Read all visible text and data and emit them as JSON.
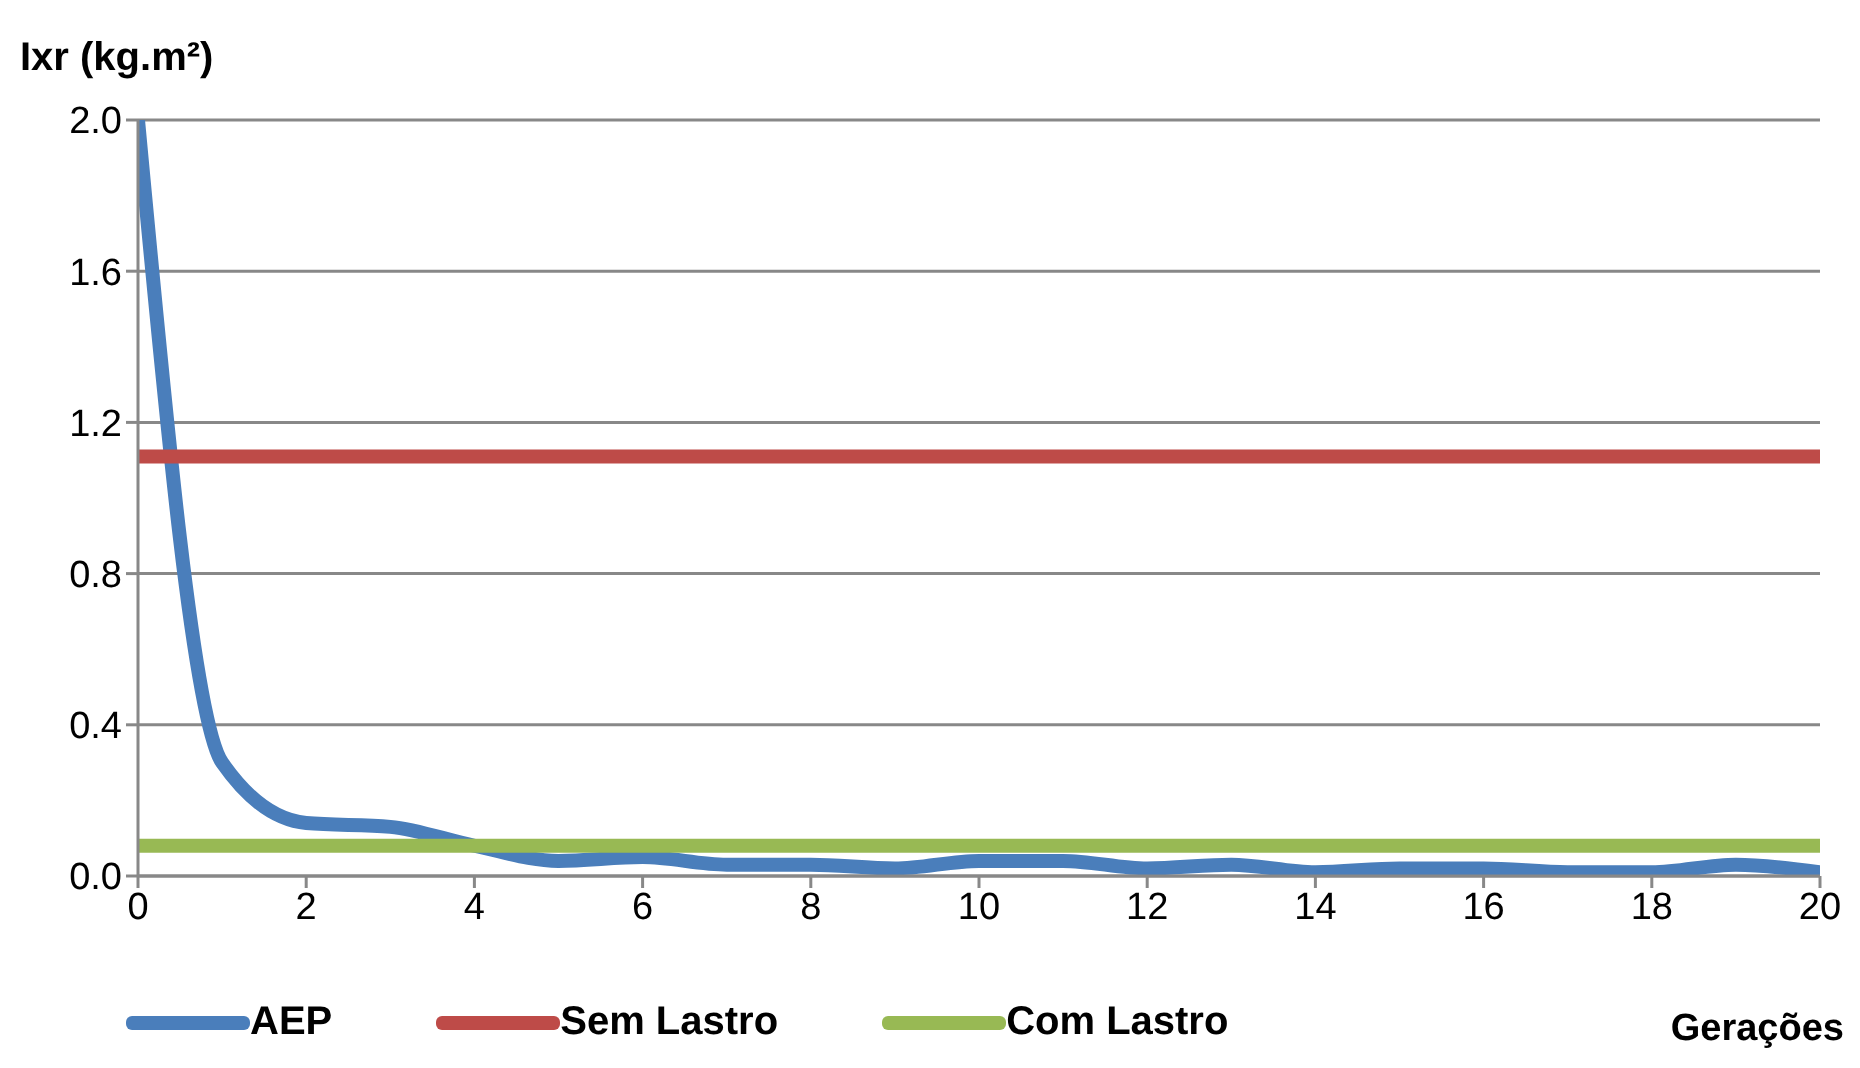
{
  "chart_data": {
    "type": "line",
    "ylabel": "Ixr (kg.m²)",
    "xlabel": "Gerações",
    "x": [
      0,
      1,
      2,
      3,
      4,
      5,
      6,
      7,
      8,
      9,
      10,
      11,
      12,
      13,
      14,
      15,
      16,
      17,
      18,
      19,
      20
    ],
    "series": [
      {
        "name": "AEP",
        "color": "#4a7ebb",
        "values": [
          2.0,
          0.3,
          0.14,
          0.13,
          0.08,
          0.04,
          0.05,
          0.03,
          0.03,
          0.02,
          0.04,
          0.04,
          0.02,
          0.03,
          0.01,
          0.02,
          0.02,
          0.01,
          0.01,
          0.03,
          0.01
        ]
      },
      {
        "name": "Sem Lastro",
        "color": "#be4b48",
        "values": [
          1.11,
          1.11,
          1.11,
          1.11,
          1.11,
          1.11,
          1.11,
          1.11,
          1.11,
          1.11,
          1.11,
          1.11,
          1.11,
          1.11,
          1.11,
          1.11,
          1.11,
          1.11,
          1.11,
          1.11,
          1.11
        ]
      },
      {
        "name": "Com Lastro",
        "color": "#98b954",
        "values": [
          0.08,
          0.08,
          0.08,
          0.08,
          0.08,
          0.08,
          0.08,
          0.08,
          0.08,
          0.08,
          0.08,
          0.08,
          0.08,
          0.08,
          0.08,
          0.08,
          0.08,
          0.08,
          0.08,
          0.08,
          0.08
        ]
      }
    ],
    "xlim": [
      0,
      20
    ],
    "xticks": [
      0,
      2,
      4,
      6,
      8,
      10,
      12,
      14,
      16,
      18,
      20
    ],
    "ylim": [
      0,
      2.0
    ],
    "yticks": [
      {
        "value": 0,
        "label": "0.0"
      },
      {
        "value": 0.4,
        "label": "0.4"
      },
      {
        "value": 0.8,
        "label": "0.8"
      },
      {
        "value": 1.2,
        "label": "1.2"
      },
      {
        "value": 1.6,
        "label": "1.6"
      },
      {
        "value": 2.0,
        "label": "2.0"
      }
    ],
    "grid": "y",
    "legend": "bottom",
    "marker": "none",
    "line_style": "solid"
  }
}
